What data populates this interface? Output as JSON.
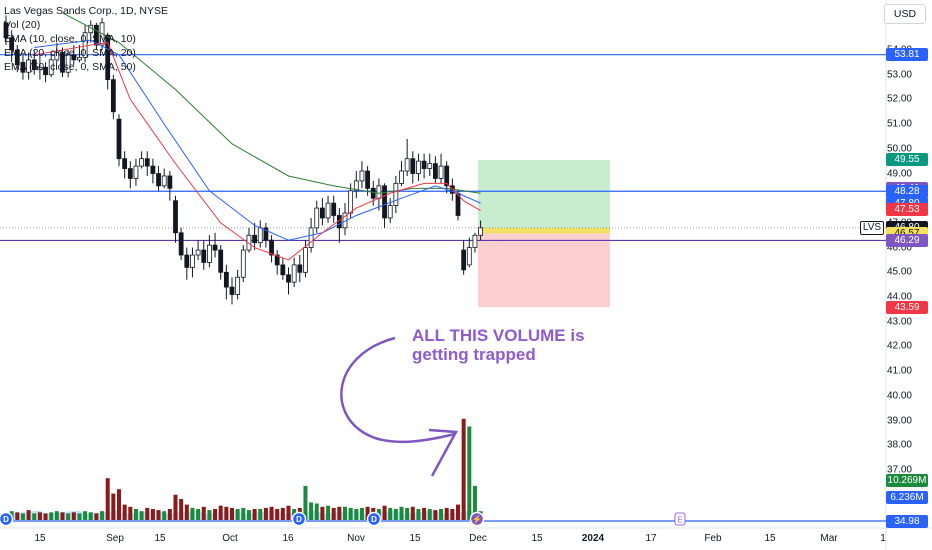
{
  "legend": {
    "title": "Las Vegas Sands Corp., 1D, NYSE",
    "vol": "Vol (20)",
    "ema10": "EMA (10, close, 0, SMA, 10)",
    "ema20": "EMA (20, close, 0, SMA, 20)",
    "ema50": "EMA (50, close, 0, SMA, 50)"
  },
  "currency": "USD",
  "annotation": {
    "line1": "ALL THIS VOLUME is",
    "line2": "getting trapped"
  },
  "colors": {
    "up": "#089981",
    "down": "#f23645",
    "candle": "#131722",
    "ema10": "#f23645",
    "ema20": "#2962ff",
    "ema50": "#2e7d32",
    "hline": "#2962ff",
    "profit": "#b7e4bf",
    "loss": "#fbc0c0",
    "arrow": "#7e57c2",
    "vol_up": "#1b8a3d",
    "vol_down": "#8b1a1a",
    "vol_ma": "#a9d4f2"
  },
  "chart_data": {
    "type": "candlestick",
    "title": "Las Vegas Sands Corp., 1D, NYSE",
    "x_ticks": [
      {
        "label": "15",
        "x": 40
      },
      {
        "label": "Sep",
        "x": 115
      },
      {
        "label": "15",
        "x": 160
      },
      {
        "label": "Oct",
        "x": 230
      },
      {
        "label": "16",
        "x": 288
      },
      {
        "label": "Nov",
        "x": 356
      },
      {
        "label": "15",
        "x": 415
      },
      {
        "label": "Dec",
        "x": 478
      },
      {
        "label": "15",
        "x": 537
      },
      {
        "label": "2024",
        "x": 593,
        "bold": true
      },
      {
        "label": "17",
        "x": 651
      },
      {
        "label": "Feb",
        "x": 713
      },
      {
        "label": "15",
        "x": 770
      },
      {
        "label": "Mar",
        "x": 829
      },
      {
        "label": "1",
        "x": 883
      }
    ],
    "y_ticks": [
      37,
      38,
      39,
      40,
      41,
      42,
      43,
      44,
      45,
      46,
      47,
      48,
      49,
      50,
      51,
      52,
      53,
      54
    ],
    "ylim": [
      36.3,
      55.3
    ],
    "candles": [
      [
        55.1,
        54.5,
        55.4,
        54.2
      ],
      [
        54.5,
        54.0,
        54.8,
        53.5
      ],
      [
        54.0,
        53.4,
        54.2,
        53.1
      ],
      [
        53.5,
        53.1,
        53.8,
        52.8
      ],
      [
        53.1,
        53.6,
        53.9,
        52.8
      ],
      [
        53.6,
        53.2,
        54.0,
        53.0
      ],
      [
        53.2,
        53.3,
        53.8,
        52.8
      ],
      [
        53.3,
        53.0,
        53.5,
        52.7
      ],
      [
        53.0,
        53.6,
        53.9,
        52.9
      ],
      [
        53.6,
        53.9,
        54.3,
        53.5
      ],
      [
        53.9,
        53.1,
        54.1,
        52.9
      ],
      [
        53.1,
        53.8,
        54.0,
        52.9
      ],
      [
        53.8,
        53.6,
        54.2,
        53.4
      ],
      [
        53.6,
        53.7,
        54.2,
        53.5
      ],
      [
        53.7,
        54.7,
        55.0,
        53.5
      ],
      [
        54.7,
        55.0,
        55.2,
        54.3
      ],
      [
        55.0,
        54.2,
        55.1,
        54.0
      ],
      [
        54.2,
        55.1,
        55.3,
        54.0
      ],
      [
        54.6,
        52.8,
        54.7,
        52.4
      ],
      [
        52.8,
        51.5,
        53.0,
        51.2
      ],
      [
        51.2,
        49.6,
        51.4,
        49.3
      ],
      [
        49.6,
        49.2,
        49.9,
        48.8
      ],
      [
        49.2,
        48.8,
        49.5,
        48.4
      ],
      [
        48.8,
        49.3,
        49.6,
        48.5
      ],
      [
        49.3,
        49.6,
        49.9,
        49.2
      ],
      [
        49.6,
        49.3,
        49.9,
        48.9
      ],
      [
        49.3,
        49.0,
        49.6,
        48.6
      ],
      [
        49.0,
        48.5,
        49.3,
        48.3
      ],
      [
        48.5,
        48.9,
        49.2,
        48.4
      ],
      [
        48.9,
        48.4,
        49.1,
        47.9
      ],
      [
        47.9,
        46.6,
        48.1,
        46.2
      ],
      [
        46.6,
        45.7,
        46.8,
        45.5
      ],
      [
        45.7,
        45.2,
        46.0,
        44.7
      ],
      [
        45.2,
        45.7,
        46.0,
        44.8
      ],
      [
        45.7,
        45.9,
        46.3,
        45.5
      ],
      [
        45.9,
        45.4,
        46.3,
        45.1
      ],
      [
        45.4,
        46.1,
        46.5,
        45.2
      ],
      [
        46.1,
        45.9,
        46.6,
        45.6
      ],
      [
        45.9,
        45.0,
        46.1,
        44.7
      ],
      [
        45.0,
        44.4,
        45.3,
        43.9
      ],
      [
        44.4,
        44.1,
        44.8,
        43.7
      ],
      [
        44.1,
        44.8,
        45.1,
        43.9
      ],
      [
        44.8,
        45.9,
        46.1,
        44.6
      ],
      [
        45.9,
        46.5,
        46.8,
        45.8
      ],
      [
        46.5,
        46.2,
        47.0,
        45.9
      ],
      [
        46.2,
        46.8,
        47.1,
        46.0
      ],
      [
        46.8,
        46.3,
        47.0,
        46.0
      ],
      [
        46.3,
        45.7,
        46.5,
        45.4
      ],
      [
        45.7,
        45.3,
        45.9,
        44.9
      ],
      [
        45.3,
        44.9,
        45.6,
        44.7
      ],
      [
        44.9,
        44.6,
        45.2,
        44.1
      ],
      [
        44.6,
        45.3,
        45.6,
        44.4
      ],
      [
        45.3,
        45.0,
        45.7,
        44.6
      ],
      [
        45.0,
        46.0,
        46.3,
        44.8
      ],
      [
        46.0,
        46.8,
        47.2,
        45.8
      ],
      [
        46.8,
        47.6,
        47.9,
        46.6
      ],
      [
        47.6,
        47.2,
        48.0,
        46.9
      ],
      [
        47.2,
        47.8,
        48.1,
        47.0
      ],
      [
        47.8,
        47.3,
        48.1,
        47.0
      ],
      [
        47.3,
        46.8,
        47.6,
        46.2
      ],
      [
        46.8,
        47.4,
        47.8,
        46.5
      ],
      [
        47.4,
        48.3,
        48.6,
        47.2
      ],
      [
        48.3,
        48.7,
        49.1,
        48.0
      ],
      [
        48.7,
        49.1,
        49.5,
        48.4
      ],
      [
        49.1,
        48.4,
        49.3,
        48.1
      ],
      [
        48.4,
        48.0,
        48.7,
        47.7
      ],
      [
        48.0,
        48.5,
        48.8,
        47.5
      ],
      [
        48.5,
        47.2,
        48.6,
        46.8
      ],
      [
        47.2,
        47.7,
        48.0,
        47.0
      ],
      [
        47.7,
        48.6,
        48.9,
        47.4
      ],
      [
        48.6,
        49.1,
        49.5,
        48.5
      ],
      [
        49.1,
        49.6,
        50.4,
        48.9
      ],
      [
        49.6,
        49.0,
        49.9,
        48.6
      ],
      [
        49.0,
        49.5,
        49.8,
        48.7
      ],
      [
        49.5,
        49.2,
        49.8,
        48.8
      ],
      [
        49.2,
        49.4,
        49.8,
        48.9
      ],
      [
        49.4,
        48.8,
        49.7,
        48.6
      ],
      [
        48.8,
        49.3,
        49.8,
        48.6
      ],
      [
        49.3,
        48.5,
        49.5,
        48.2
      ],
      [
        48.5,
        48.2,
        48.8,
        47.9
      ],
      [
        48.2,
        47.3,
        48.3,
        47.1
      ],
      [
        45.9,
        45.1,
        46.3,
        44.9
      ],
      [
        45.3,
        46.0,
        46.4,
        45.2
      ],
      [
        46.0,
        46.5,
        46.6,
        45.8
      ],
      [
        46.5,
        46.8,
        47.1,
        46.3
      ]
    ],
    "ema10": [
      [
        5,
        53.8
      ],
      [
        15,
        54.2
      ],
      [
        18,
        54.3
      ],
      [
        22,
        52.0
      ],
      [
        30,
        49.4
      ],
      [
        38,
        47.0
      ],
      [
        44,
        46.0
      ],
      [
        50,
        45.5
      ],
      [
        56,
        46.6
      ],
      [
        62,
        47.6
      ],
      [
        68,
        48.2
      ],
      [
        74,
        48.6
      ],
      [
        78,
        48.6
      ],
      [
        81,
        47.9
      ],
      [
        84,
        47.5
      ]
    ],
    "ema20": [
      [
        5,
        54.1
      ],
      [
        15,
        54.4
      ],
      [
        20,
        53.8
      ],
      [
        28,
        51.0
      ],
      [
        36,
        48.3
      ],
      [
        44,
        46.9
      ],
      [
        50,
        46.3
      ],
      [
        56,
        46.6
      ],
      [
        62,
        47.3
      ],
      [
        70,
        48.0
      ],
      [
        76,
        48.5
      ],
      [
        80,
        48.2
      ],
      [
        84,
        47.8
      ]
    ],
    "ema50": [
      [
        10,
        55.5
      ],
      [
        20,
        54.3
      ],
      [
        30,
        52.4
      ],
      [
        40,
        50.2
      ],
      [
        50,
        48.9
      ],
      [
        58,
        48.5
      ],
      [
        66,
        48.2
      ],
      [
        72,
        48.4
      ],
      [
        78,
        48.4
      ],
      [
        84,
        48.2
      ]
    ],
    "volume_up": [
      false,
      true,
      false,
      true,
      false,
      true,
      false,
      false,
      true,
      true,
      false,
      true,
      false,
      true,
      true,
      true,
      false,
      true,
      false,
      false,
      false,
      false,
      false,
      true,
      true,
      false,
      false,
      false,
      true,
      false,
      false,
      false,
      false,
      true,
      true,
      false,
      true,
      false,
      false,
      false,
      false,
      true,
      true,
      true,
      false,
      true,
      false,
      false,
      false,
      false,
      false,
      true,
      false,
      true,
      true,
      true,
      false,
      true,
      false,
      false,
      true,
      true,
      true,
      true,
      false,
      false,
      true,
      false,
      true,
      true,
      true,
      true,
      false,
      true,
      false,
      true,
      false,
      true,
      false,
      false,
      false,
      false,
      true,
      true,
      true
    ],
    "volume_height": [
      0.25,
      0.4,
      0.35,
      0.3,
      0.45,
      0.3,
      0.35,
      0.3,
      0.35,
      0.4,
      0.35,
      0.3,
      0.35,
      0.3,
      0.4,
      0.35,
      0.3,
      0.4,
      1.9,
      1.2,
      1.4,
      0.7,
      0.6,
      0.5,
      0.4,
      0.55,
      0.5,
      0.45,
      0.4,
      0.5,
      1.15,
      0.95,
      0.7,
      0.55,
      0.5,
      0.6,
      0.45,
      0.5,
      0.65,
      0.6,
      0.55,
      0.5,
      0.55,
      0.45,
      0.5,
      0.5,
      0.55,
      0.6,
      0.5,
      0.55,
      0.65,
      0.5,
      0.55,
      1.55,
      0.8,
      0.75,
      0.6,
      0.65,
      0.55,
      0.6,
      0.6,
      0.55,
      0.5,
      0.55,
      0.6,
      0.55,
      0.5,
      0.65,
      0.55,
      0.5,
      0.6,
      0.55,
      0.6,
      0.5,
      0.55,
      0.5,
      0.45,
      0.5,
      0.55,
      0.5,
      0.7,
      4.6,
      4.25,
      1.55,
      0.4
    ],
    "hlines": [
      53.81,
      48.28,
      46.29,
      34.98
    ],
    "position": {
      "entry": 46.57,
      "target": 49.55,
      "stop": 43.59,
      "x_start": 478,
      "x_end": 610
    },
    "price_labels": [
      {
        "text": "53.81",
        "value": 53.81,
        "bg": "#2962ff"
      },
      {
        "text": "49.55",
        "value": 49.55,
        "bg": "#089981"
      },
      {
        "text": "48.41",
        "value": 48.41,
        "bg": "#7e57c2"
      },
      {
        "text": "48.28",
        "value": 48.28,
        "bg": "#2962ff"
      },
      {
        "text": "47.80",
        "value": 47.8,
        "bg": "#2962ff"
      },
      {
        "text": "47.53",
        "value": 47.53,
        "bg": "#f23645"
      },
      {
        "text": "46.80",
        "value": 46.8,
        "bg": "#131722"
      },
      {
        "text": "46.57",
        "value": 46.57,
        "bg": "#f5e05a",
        "fg": "#131722"
      },
      {
        "text": "46.29",
        "value": 46.29,
        "bg": "#7e57c2"
      },
      {
        "text": "43.59",
        "value": 43.59,
        "bg": "#f23645"
      },
      {
        "text": "10.269M",
        "y": 480,
        "bg": "#1b8a3d"
      },
      {
        "text": "6.236M",
        "y": 497,
        "bg": "#2962ff"
      },
      {
        "text": "34.98",
        "y": 521,
        "bg": "#2962ff"
      }
    ],
    "ticker_label": "LVS",
    "event_markers": [
      {
        "kind": "D",
        "x": 6
      },
      {
        "kind": "D",
        "x": 299
      },
      {
        "kind": "D",
        "x": 374
      },
      {
        "kind": "flash",
        "x": 477
      },
      {
        "kind": "E",
        "x": 680
      }
    ]
  }
}
